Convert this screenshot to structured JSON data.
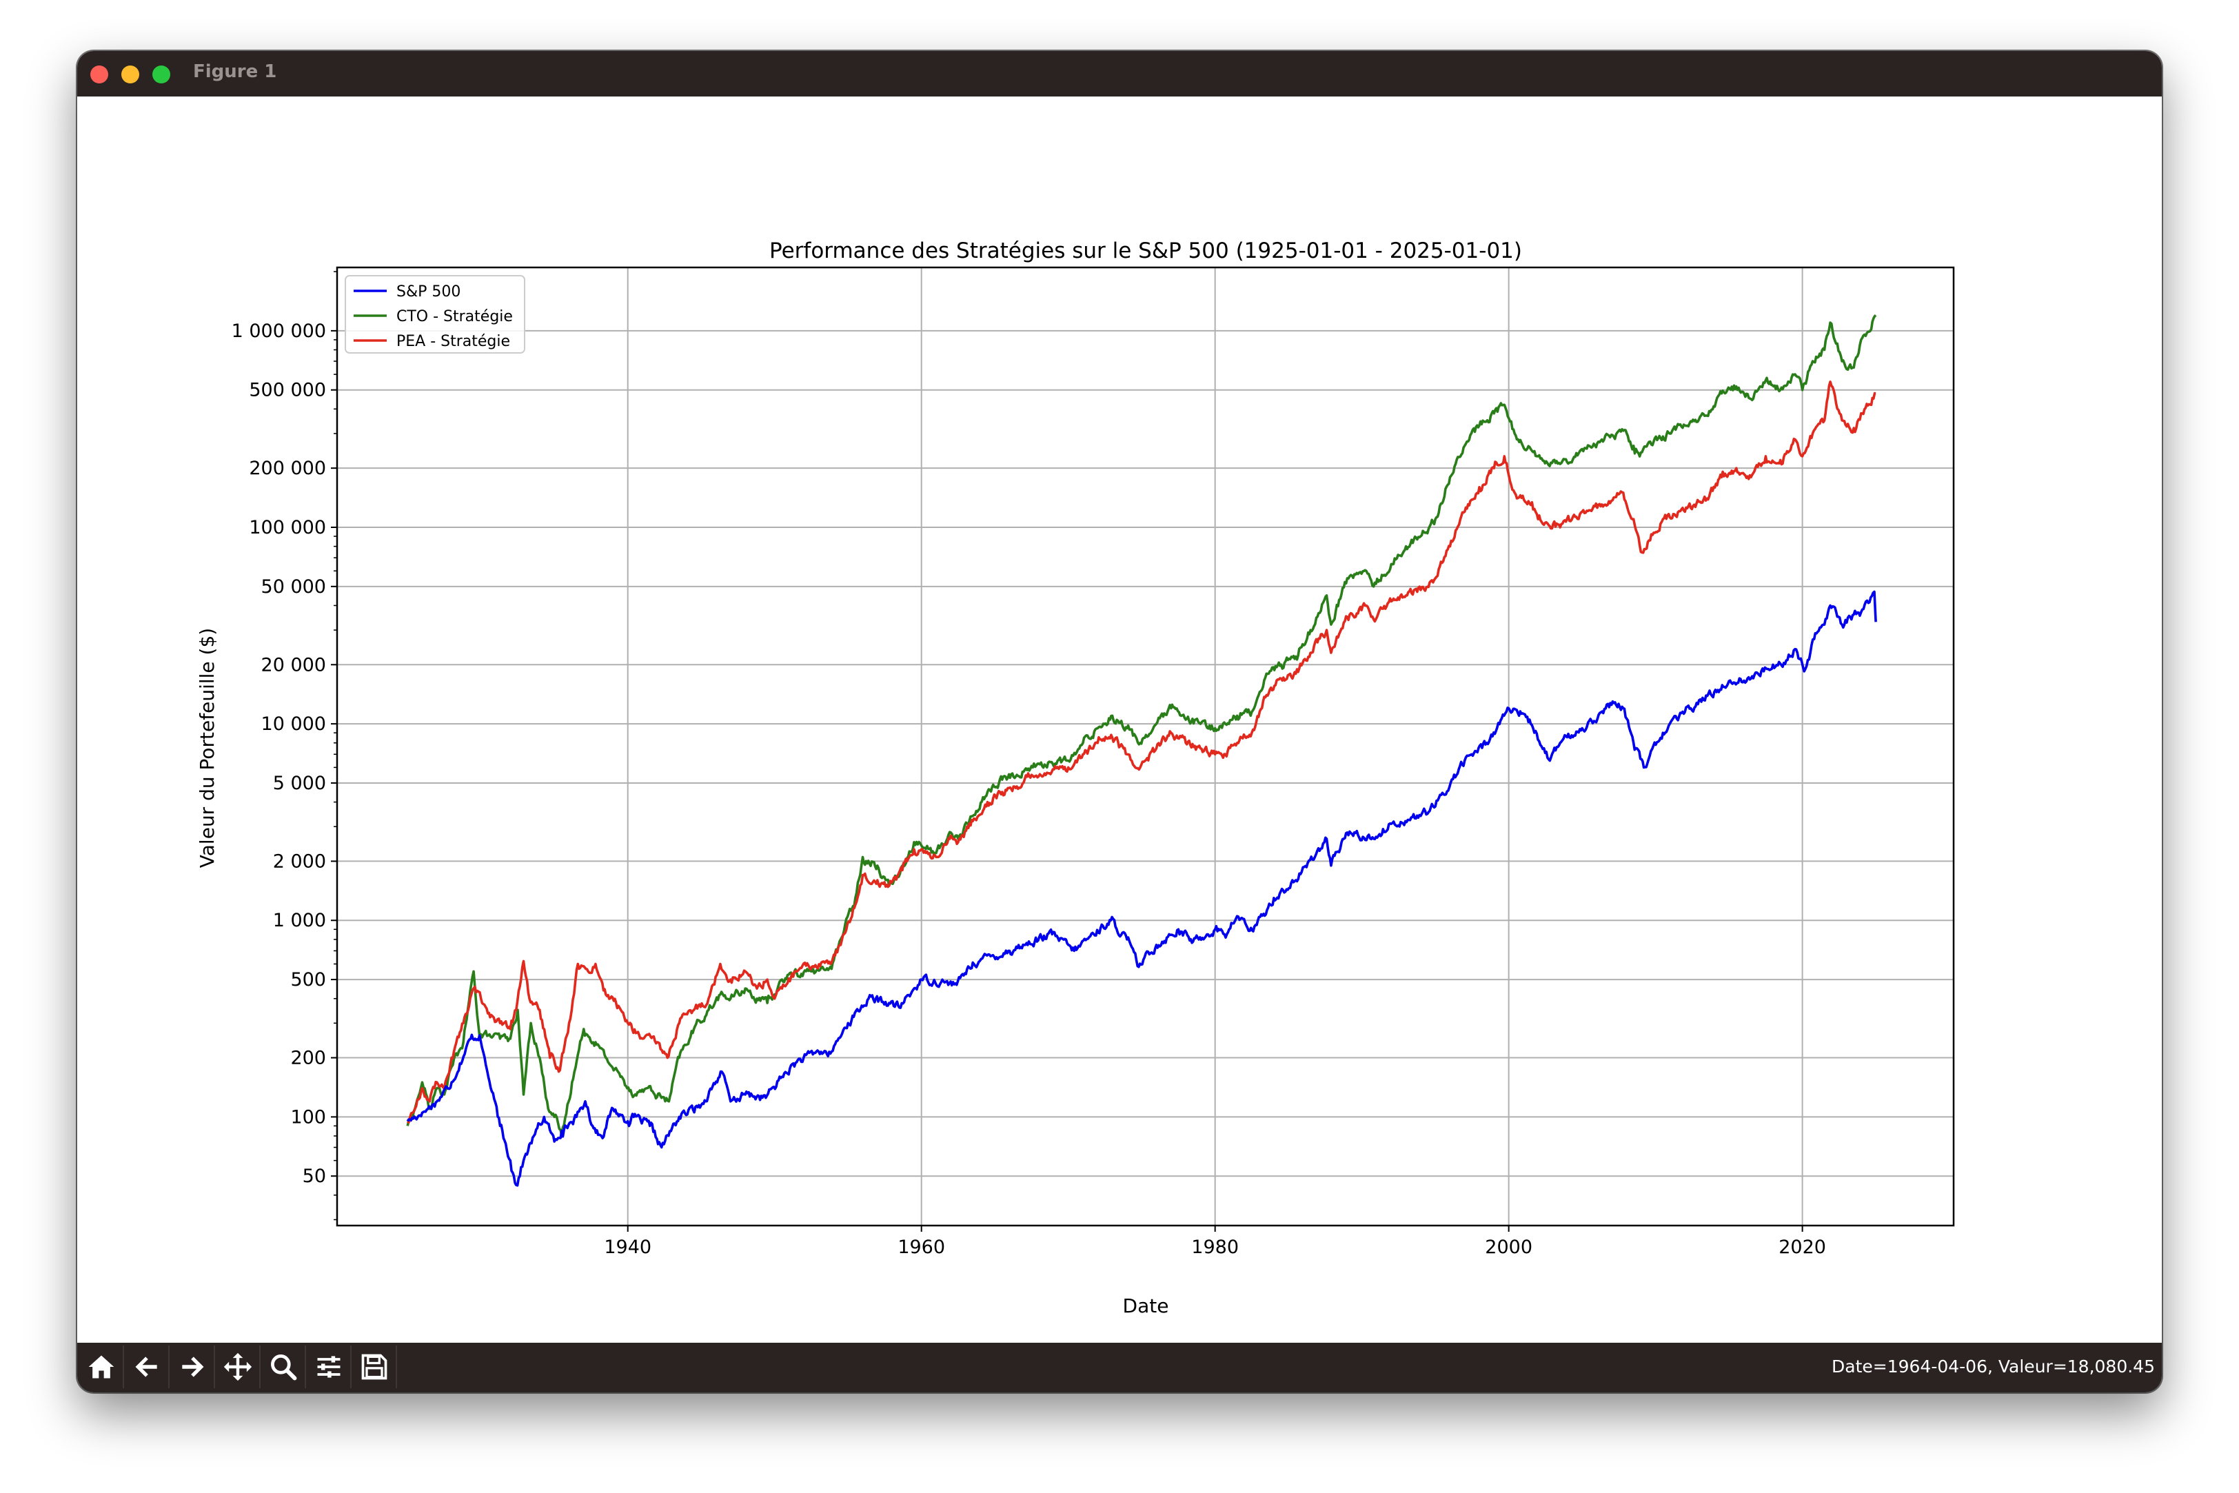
{
  "window": {
    "title": "Figure 1"
  },
  "toolbar": {
    "icons": [
      "home-icon",
      "back-arrow-icon",
      "forward-arrow-icon",
      "pan-icon",
      "zoom-icon",
      "configure-subplots-icon",
      "save-icon"
    ],
    "status": "Date=1964-04-06, Valeur=18,080.45"
  },
  "chart_data": {
    "type": "line",
    "title": "Performance des Stratégies sur le S&P 500 (1925-01-01 - 2025-01-01)",
    "xlabel": "Date",
    "ylabel": "Valeur du Portefeuille ($)",
    "yscale": "log",
    "xlim": [
      1920.2,
      2030.3
    ],
    "ylim": [
      28,
      2100000
    ],
    "xticks": [
      1940,
      1960,
      1980,
      2000,
      2020
    ],
    "xtick_labels": [
      "1940",
      "1960",
      "1980",
      "2000",
      "2020"
    ],
    "yticks": [
      50,
      100,
      200,
      500,
      1000,
      2000,
      5000,
      10000,
      20000,
      50000,
      100000,
      200000,
      500000,
      1000000
    ],
    "ytick_labels": [
      "50",
      "100",
      "200",
      "500",
      "1 000",
      "2 000",
      "5 000",
      "10 000",
      "20 000",
      "50 000",
      "100 000",
      "200 000",
      "500 000",
      "1 000 000"
    ],
    "grid": true,
    "legend": "top-left",
    "series": [
      {
        "name": "S&P 500",
        "color": "#0000ee",
        "x": [
          1925.0,
          1926.0,
          1927.0,
          1928.0,
          1929.3,
          1929.9,
          1930.5,
          1931.3,
          1932.0,
          1932.4,
          1932.9,
          1933.6,
          1934.3,
          1935.0,
          1935.5,
          1936.5,
          1937.1,
          1937.6,
          1938.2,
          1939.0,
          1940.0,
          1940.4,
          1941.5,
          1942.3,
          1943.5,
          1945.0,
          1946.4,
          1947.0,
          1948.0,
          1949.4,
          1950.5,
          1951.5,
          1953.0,
          1953.8,
          1955.0,
          1956.4,
          1957.8,
          1958.5,
          1960.0,
          1961.5,
          1962.4,
          1963.5,
          1966.0,
          1967.0,
          1968.9,
          1970.4,
          1971.5,
          1972.9,
          1974.0,
          1974.8,
          1976.0,
          1977.5,
          1978.5,
          1980.0,
          1980.8,
          1981.5,
          1982.6,
          1984.0,
          1985.5,
          1987.6,
          1987.9,
          1989.0,
          1990.8,
          1992.0,
          1994.0,
          1995.0,
          1997.0,
          1998.5,
          2000.0,
          2000.7,
          2001.5,
          2002.4,
          2002.8,
          2003.5,
          2005.0,
          2007.0,
          2007.8,
          2008.5,
          2009.2,
          2010.5,
          2012.0,
          2014.0,
          2015.0,
          2016.5,
          2018.0,
          2018.9,
          2019.5,
          2020.2,
          2020.8,
          2021.5,
          2021.9,
          2022.7,
          2023.5,
          2024.0,
          2024.9,
          2025.0
        ],
        "y": [
          95,
          105,
          120,
          150,
          250,
          260,
          160,
          90,
          60,
          45,
          60,
          80,
          100,
          75,
          85,
          100,
          120,
          90,
          80,
          110,
          95,
          100,
          90,
          70,
          100,
          115,
          170,
          120,
          130,
          125,
          160,
          190,
          215,
          210,
          300,
          400,
          380,
          360,
          500,
          490,
          470,
          610,
          700,
          750,
          850,
          700,
          830,
          1000,
          800,
          580,
          750,
          900,
          780,
          900,
          850,
          1050,
          880,
          1300,
          1600,
          2600,
          1900,
          2800,
          2600,
          3100,
          3400,
          3800,
          6500,
          8000,
          12000,
          11000,
          10000,
          7500,
          6500,
          8000,
          9500,
          12500,
          12000,
          8000,
          6000,
          9000,
          11500,
          14500,
          16500,
          17000,
          20000,
          21000,
          24000,
          19000,
          27000,
          32000,
          40000,
          32000,
          36000,
          37000,
          47000,
          33000
        ]
      },
      {
        "name": "CTO - Stratégie",
        "color": "#2a7e19",
        "x": [
          1925.0,
          1925.5,
          1926.0,
          1926.5,
          1927.0,
          1927.5,
          1928.0,
          1928.8,
          1929.5,
          1929.9,
          1930.5,
          1931.3,
          1932.0,
          1932.5,
          1932.9,
          1933.4,
          1934.0,
          1934.5,
          1935.0,
          1935.5,
          1936.2,
          1937.0,
          1937.8,
          1938.5,
          1939.5,
          1940.5,
          1941.3,
          1942.3,
          1942.8,
          1943.5,
          1944.5,
          1945.5,
          1946.3,
          1947.0,
          1948.0,
          1948.8,
          1949.5,
          1950.0,
          1950.5,
          1951.5,
          1953.5,
          1953.8,
          1954.5,
          1955.5,
          1956.0,
          1957.0,
          1957.8,
          1958.7,
          1959.5,
          1960.0,
          1961.0,
          1962.0,
          1962.5,
          1963.5,
          1964.5,
          1965.5,
          1966.5,
          1967.5,
          1970.0,
          1970.5,
          1971.0,
          1972.0,
          1973.0,
          1974.0,
          1974.9,
          1976.0,
          1977.0,
          1978.0,
          1979.0,
          1980.0,
          1980.7,
          1981.5,
          1982.5,
          1983.5,
          1984.5,
          1985.5,
          1986.5,
          1987.6,
          1987.9,
          1989.0,
          1990.3,
          1990.8,
          1992.0,
          1993.0,
          1994.0,
          1995.0,
          1996.0,
          1997.0,
          1998.0,
          1999.0,
          1999.7,
          2000.4,
          2001.5,
          2002.0,
          2003.5,
          2005.0,
          2006.5,
          2007.8,
          2008.5,
          2009.0,
          2010.5,
          2012.0,
          2013.5,
          2014.5,
          2015.5,
          2016.5,
          2017.5,
          2018.5,
          2019.5,
          2020.0,
          2020.7,
          2021.5,
          2021.9,
          2022.7,
          2023.5,
          2024.0,
          2025.0
        ],
        "y": [
          90,
          110,
          150,
          110,
          140,
          130,
          180,
          240,
          550,
          260,
          260,
          250,
          250,
          350,
          130,
          300,
          200,
          120,
          100,
          80,
          150,
          280,
          240,
          200,
          160,
          130,
          140,
          125,
          120,
          200,
          280,
          350,
          420,
          400,
          450,
          400,
          380,
          420,
          500,
          540,
          560,
          580,
          800,
          1300,
          2100,
          1900,
          1500,
          1900,
          2500,
          2400,
          2200,
          2800,
          2600,
          3400,
          4500,
          5200,
          5500,
          6100,
          6500,
          7000,
          8000,
          9500,
          11000,
          9500,
          8000,
          10000,
          12000,
          10500,
          10000,
          9500,
          10000,
          11000,
          11500,
          18000,
          20000,
          22000,
          30000,
          45000,
          32000,
          55000,
          60000,
          50000,
          65000,
          80000,
          90000,
          110000,
          180000,
          260000,
          330000,
          380000,
          420000,
          300000,
          250000,
          230000,
          210000,
          250000,
          280000,
          310000,
          260000,
          240000,
          290000,
          330000,
          370000,
          480000,
          520000,
          450000,
          560000,
          500000,
          600000,
          500000,
          700000,
          800000,
          1100000,
          700000,
          650000,
          900000,
          1200000
        ]
      },
      {
        "name": "PEA - Stratégie",
        "color": "#e2291d",
        "x": [
          1925.0,
          1925.5,
          1926.0,
          1926.5,
          1927.0,
          1927.5,
          1928.0,
          1928.8,
          1929.5,
          1930.0,
          1930.7,
          1931.3,
          1932.0,
          1932.4,
          1932.9,
          1933.3,
          1934.0,
          1934.7,
          1935.3,
          1936.0,
          1936.6,
          1937.3,
          1937.8,
          1938.5,
          1939.2,
          1940.0,
          1941.0,
          1942.0,
          1942.7,
          1943.5,
          1944.5,
          1945.5,
          1946.3,
          1947.0,
          1948.0,
          1948.8,
          1949.5,
          1950.0,
          1950.5,
          1951.5,
          1953.5,
          1953.8,
          1954.5,
          1955.5,
          1956.0,
          1957.0,
          1957.8,
          1958.7,
          1959.5,
          1960.0,
          1961.0,
          1962.0,
          1962.5,
          1963.5,
          1964.5,
          1965.5,
          1966.5,
          1967.5,
          1970.0,
          1970.5,
          1971.0,
          1972.0,
          1973.0,
          1974.0,
          1974.9,
          1976.0,
          1977.0,
          1978.0,
          1979.0,
          1980.0,
          1980.7,
          1981.5,
          1982.5,
          1983.5,
          1984.5,
          1985.5,
          1986.5,
          1987.6,
          1987.9,
          1989.0,
          1990.3,
          1990.8,
          1992.0,
          1993.0,
          1994.0,
          1995.0,
          1996.0,
          1997.0,
          1998.0,
          1999.0,
          1999.7,
          2000.4,
          2001.5,
          2002.0,
          2003.5,
          2005.0,
          2006.5,
          2007.8,
          2008.5,
          2009.0,
          2010.5,
          2012.0,
          2013.5,
          2014.5,
          2015.5,
          2016.5,
          2017.5,
          2018.5,
          2019.5,
          2020.0,
          2020.7,
          2021.5,
          2021.9,
          2022.7,
          2023.5,
          2024.0,
          2025.0
        ],
        "y": [
          95,
          110,
          140,
          120,
          150,
          140,
          200,
          300,
          450,
          400,
          330,
          300,
          280,
          350,
          620,
          400,
          350,
          200,
          170,
          300,
          600,
          550,
          600,
          420,
          380,
          300,
          250,
          240,
          200,
          300,
          350,
          400,
          600,
          500,
          550,
          450,
          500,
          400,
          450,
          550,
          620,
          600,
          750,
          1200,
          1700,
          1600,
          1500,
          1800,
          2300,
          2300,
          2100,
          2700,
          2500,
          3200,
          4000,
          4500,
          4800,
          5500,
          6000,
          6500,
          7000,
          8000,
          8500,
          7000,
          6000,
          7500,
          9000,
          8000,
          7500,
          7000,
          7000,
          8000,
          9000,
          14000,
          17000,
          18000,
          23000,
          30000,
          23000,
          35000,
          40000,
          34000,
          42000,
          45000,
          48000,
          55000,
          80000,
          120000,
          160000,
          200000,
          230000,
          150000,
          130000,
          110000,
          100000,
          120000,
          130000,
          150000,
          110000,
          75000,
          110000,
          120000,
          140000,
          180000,
          200000,
          180000,
          230000,
          220000,
          280000,
          230000,
          300000,
          350000,
          550000,
          350000,
          320000,
          380000,
          480000
        ]
      }
    ]
  }
}
